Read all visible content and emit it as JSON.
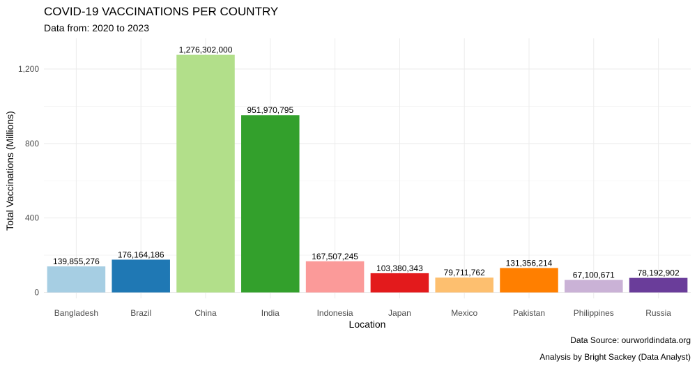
{
  "chart_data": {
    "type": "bar",
    "title": "COVID-19 VACCINATIONS PER COUNTRY",
    "subtitle": "Data from: 2020 to 2023",
    "xlabel": "Location",
    "ylabel": "Total Vaccinations (Millions)",
    "ylim": [
      0,
      1340
    ],
    "yticks": [
      0,
      400,
      800,
      1200
    ],
    "ytick_labels": [
      "0",
      "400",
      "800",
      "1,200"
    ],
    "grid": true,
    "categories": [
      "Bangladesh",
      "Brazil",
      "China",
      "India",
      "Indonesia",
      "Japan",
      "Mexico",
      "Pakistan",
      "Philippines",
      "Russia"
    ],
    "values": [
      139.855276,
      176.164186,
      1276.302,
      951.970795,
      167.507245,
      103.380343,
      79.711762,
      131.356214,
      67.100671,
      78.192902
    ],
    "data_labels": [
      "139,855,276",
      "176,164,186",
      "1,276,302,000",
      "951,970,795",
      "167,507,245",
      "103,380,343",
      "79,711,762",
      "131,356,214",
      "67,100,671",
      "78,192,902"
    ],
    "colors": [
      "#a6cee3",
      "#1f78b4",
      "#b2df8a",
      "#33a02c",
      "#fb9a99",
      "#e31a1c",
      "#fdbf6f",
      "#ff7f00",
      "#cab2d6",
      "#6a3d9a"
    ],
    "caption_lines": [
      "Data Source: ourworldindata.org",
      "Analysis by Bright Sackey (Data Analyst)"
    ]
  }
}
